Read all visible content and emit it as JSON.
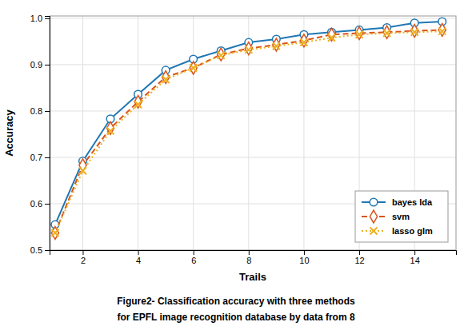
{
  "chart_data": {
    "type": "line",
    "x_label": "Trails",
    "y_label": "Accuracy",
    "annotations": [
      "Figure2- Classification accuracy with three methods",
      "for EPFL image recognition database by data from 8"
    ],
    "x": [
      1,
      2,
      3,
      4,
      5,
      6,
      7,
      8,
      9,
      10,
      11,
      12,
      13,
      14,
      15
    ],
    "series": [
      {
        "name": "bayes lda",
        "color": "#1f77b4",
        "marker": "circle",
        "line_style": "solid",
        "values": [
          0.555,
          0.692,
          0.783,
          0.836,
          0.888,
          0.912,
          0.93,
          0.948,
          0.955,
          0.965,
          0.97,
          0.975,
          0.98,
          0.99,
          0.993
        ]
      },
      {
        "name": "svm",
        "color": "#d95319",
        "marker": "diamond",
        "line_style": "dashed",
        "values": [
          0.537,
          0.683,
          0.763,
          0.82,
          0.873,
          0.893,
          0.922,
          0.935,
          0.943,
          0.952,
          0.965,
          0.968,
          0.97,
          0.973,
          0.975
        ]
      },
      {
        "name": "lasso glm",
        "color": "#edb120",
        "marker": "x",
        "line_style": "dotted",
        "values": [
          0.537,
          0.671,
          0.757,
          0.814,
          0.868,
          0.893,
          0.92,
          0.932,
          0.94,
          0.948,
          0.958,
          0.965,
          0.968,
          0.97,
          0.972
        ]
      }
    ],
    "xlim": [
      0.8,
      15.5
    ],
    "ylim": [
      0.5,
      1.005
    ],
    "xticks": [
      2,
      4,
      6,
      8,
      10,
      12,
      14
    ],
    "yticks": [
      0.5,
      0.6,
      0.7,
      0.8,
      0.9,
      {
        "value": 1.0,
        "label": "1.0"
      }
    ],
    "grid": true,
    "legend": "lower right"
  }
}
